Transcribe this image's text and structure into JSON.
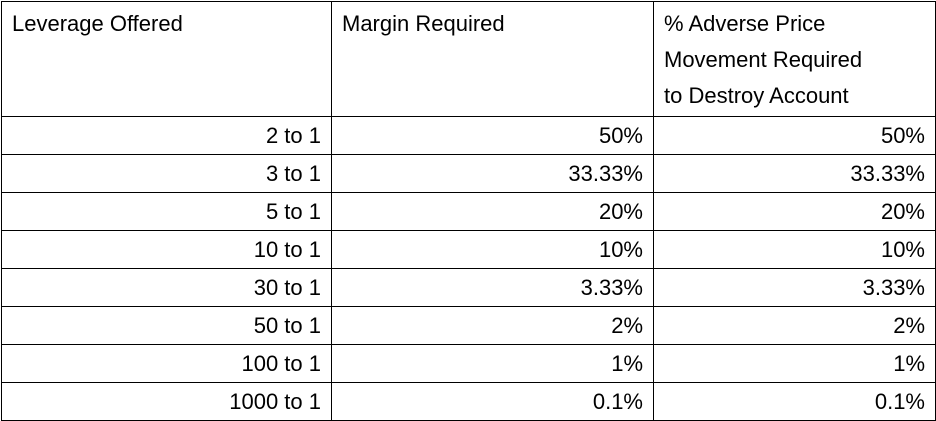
{
  "table": {
    "header": [
      "Leverage Offered",
      "Margin Required",
      [
        "% Adverse Price",
        "Movement Required",
        "to Destroy Account"
      ]
    ],
    "rows": [
      [
        "2 to 1",
        "50%",
        "50%"
      ],
      [
        "3 to 1",
        "33.33%",
        "33.33%"
      ],
      [
        "5 to 1",
        "20%",
        "20%"
      ],
      [
        "10 to 1",
        "10%",
        "10%"
      ],
      [
        "30 to 1",
        "3.33%",
        "3.33%"
      ],
      [
        "50 to 1",
        "2%",
        "2%"
      ],
      [
        "100 to 1",
        "1%",
        "1%"
      ],
      [
        "1000 to 1",
        "0.1%",
        "0.1%"
      ]
    ]
  }
}
